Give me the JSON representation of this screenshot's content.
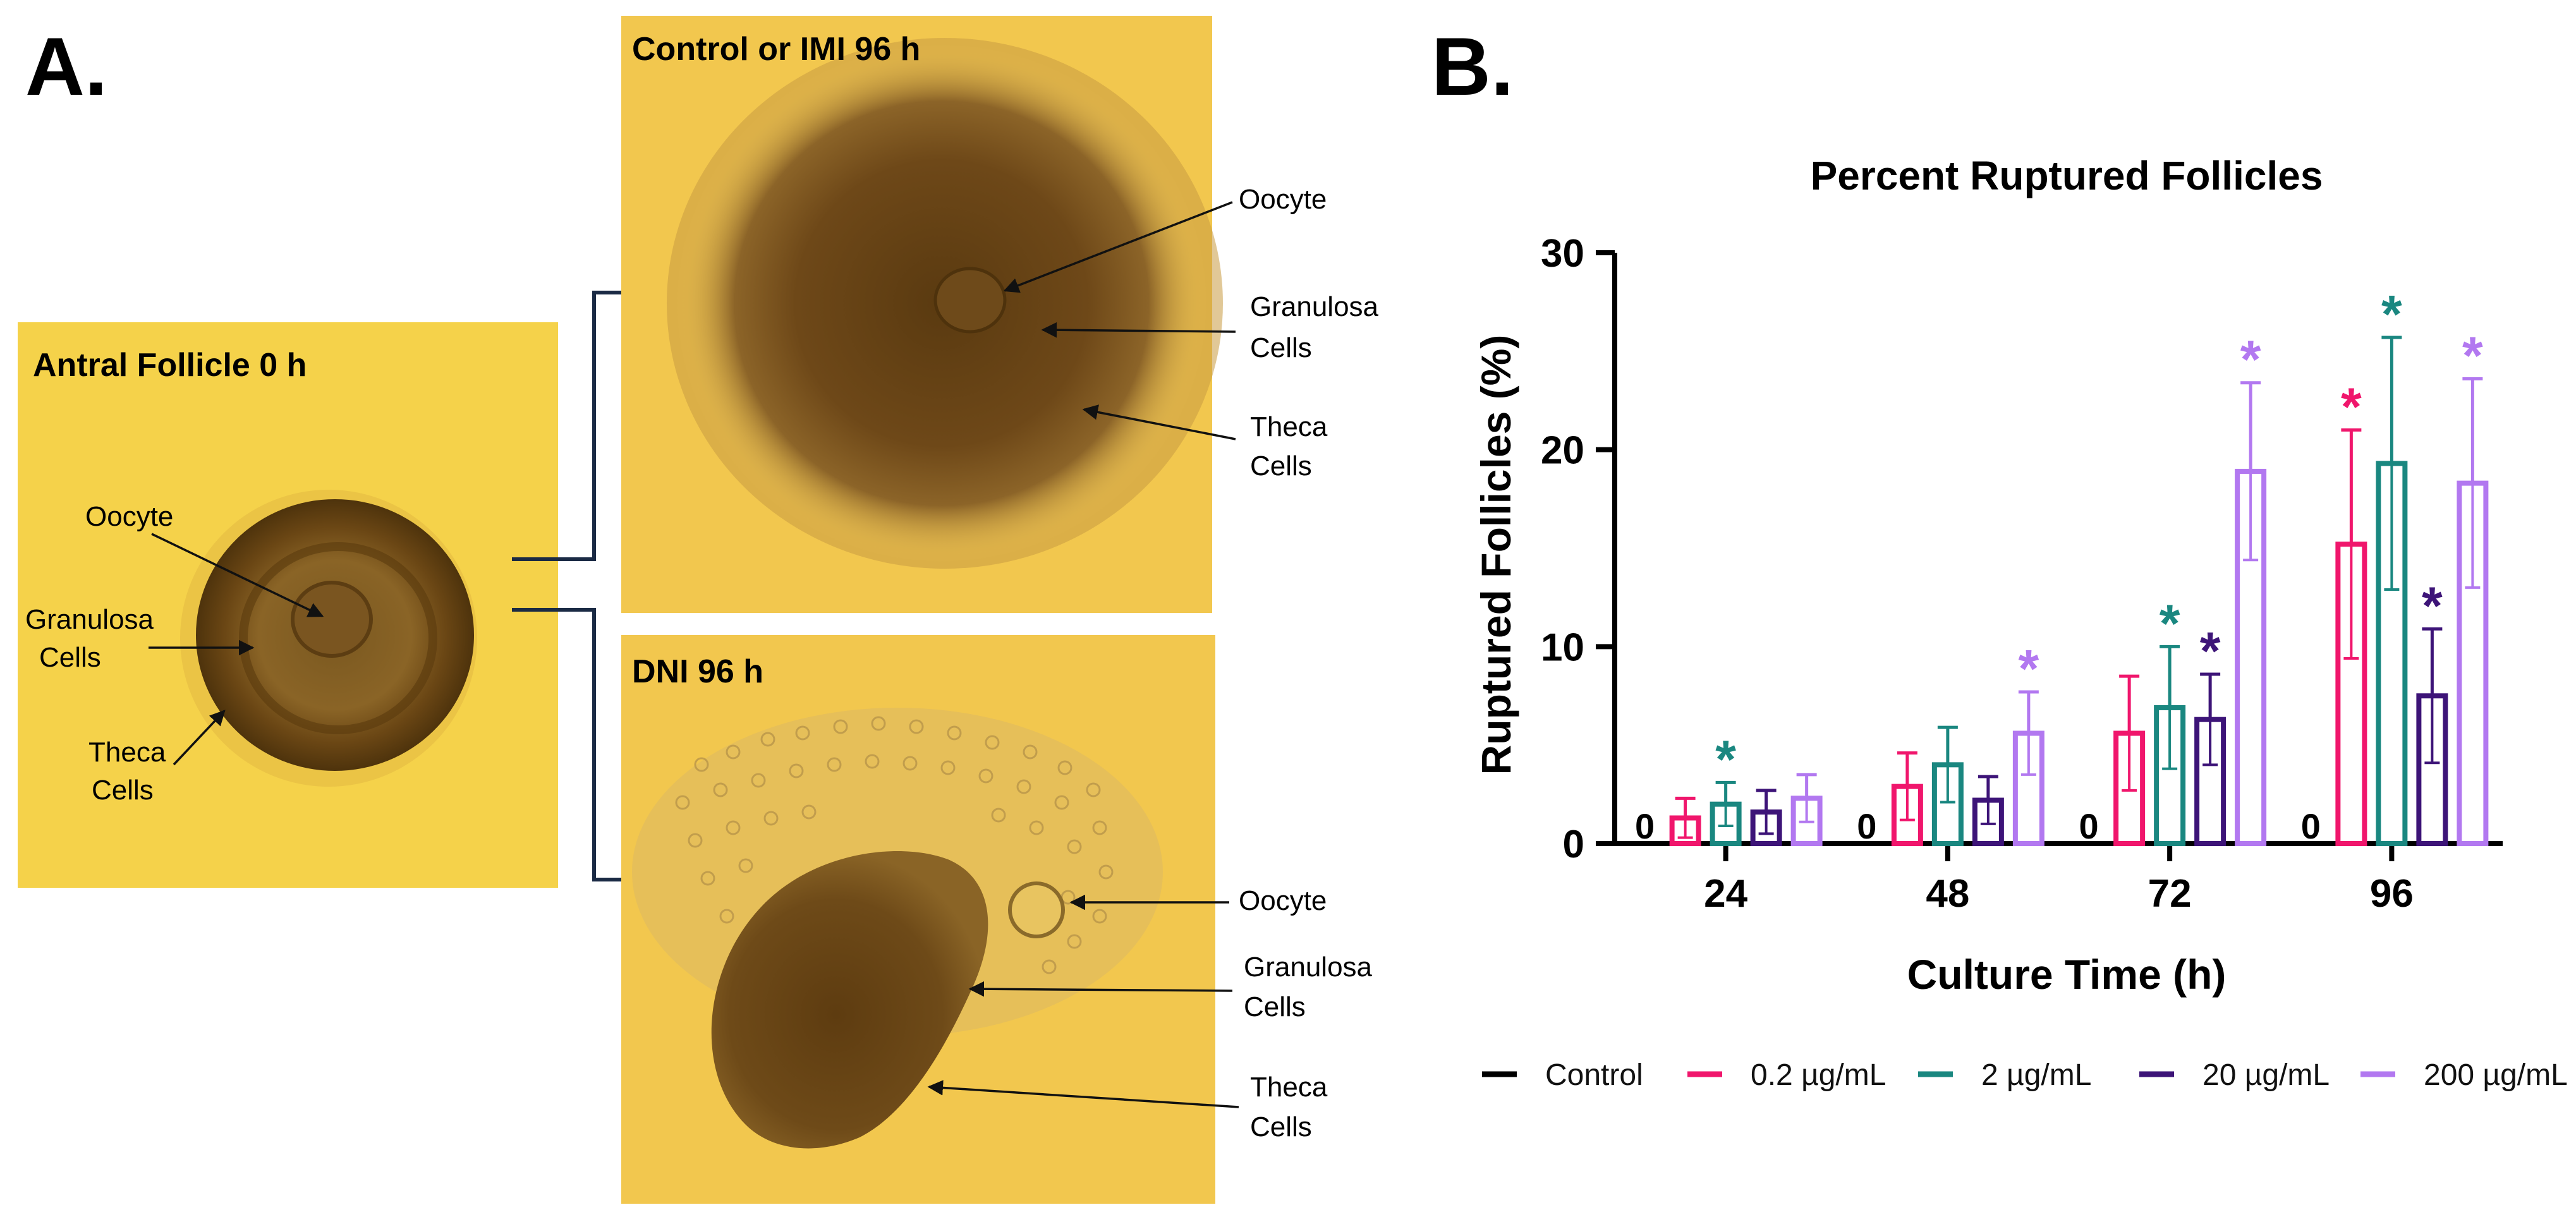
{
  "panel_a": {
    "label": "A.",
    "antral": {
      "title": "Antral Follicle 0 h",
      "oocyte": "Oocyte",
      "granulosa": [
        "Granulosa",
        "Cells"
      ],
      "theca": [
        "Theca",
        "Cells"
      ]
    },
    "control": {
      "title": "Control or IMI 96 h",
      "oocyte": "Oocyte",
      "granulosa": [
        "Granulosa",
        "Cells"
      ],
      "theca": [
        "Theca",
        "Cells"
      ]
    },
    "dni": {
      "title": "DNI 96 h",
      "oocyte": "Oocyte",
      "granulosa": [
        "Granulosa",
        "Cells"
      ],
      "theca": [
        "Theca",
        "Cells"
      ]
    }
  },
  "panel_b": {
    "label": "B."
  },
  "colors": {
    "background_photo": "#f2c845",
    "tissue": "#6e4a17",
    "control": "#000000",
    "c02": "#f0166c",
    "c2": "#1a8780",
    "c20": "#3d1478",
    "c200": "#b278f0"
  },
  "chart_data": {
    "type": "bar",
    "title": "Percent Ruptured Follicles",
    "xlabel": "Culture Time (h)",
    "ylabel": "Ruptured Follicles (%)",
    "ylim": [
      0,
      30
    ],
    "yticks": [
      0,
      10,
      20,
      30
    ],
    "categories": [
      "24",
      "48",
      "72",
      "96"
    ],
    "zero_label": "0",
    "series": [
      {
        "name": "Control",
        "color_key": "control",
        "values": [
          0,
          0,
          0,
          0
        ],
        "errors": [
          0,
          0,
          0,
          0
        ],
        "significant": [
          false,
          false,
          false,
          false
        ]
      },
      {
        "name": "0.2 µg/mL",
        "color_key": "c02",
        "values": [
          1.3,
          2.9,
          5.6,
          15.2
        ],
        "errors": [
          1.0,
          1.7,
          2.9,
          5.8
        ],
        "significant": [
          false,
          false,
          false,
          true
        ]
      },
      {
        "name": "2 µg/mL",
        "color_key": "c2",
        "values": [
          2.0,
          4.0,
          6.9,
          19.3
        ],
        "errors": [
          1.1,
          1.9,
          3.1,
          6.4
        ],
        "significant": [
          true,
          false,
          true,
          true
        ]
      },
      {
        "name": "20 µg/mL",
        "color_key": "c20",
        "values": [
          1.6,
          2.2,
          6.3,
          7.5
        ],
        "errors": [
          1.1,
          1.2,
          2.3,
          3.4
        ],
        "significant": [
          false,
          false,
          true,
          true
        ]
      },
      {
        "name": "200 µg/mL",
        "color_key": "c200",
        "values": [
          2.3,
          5.6,
          18.9,
          18.3
        ],
        "errors": [
          1.2,
          2.1,
          4.5,
          5.3
        ],
        "significant": [
          false,
          true,
          true,
          true
        ]
      }
    ],
    "significance_marker": "*",
    "legend_position": "bottom"
  }
}
